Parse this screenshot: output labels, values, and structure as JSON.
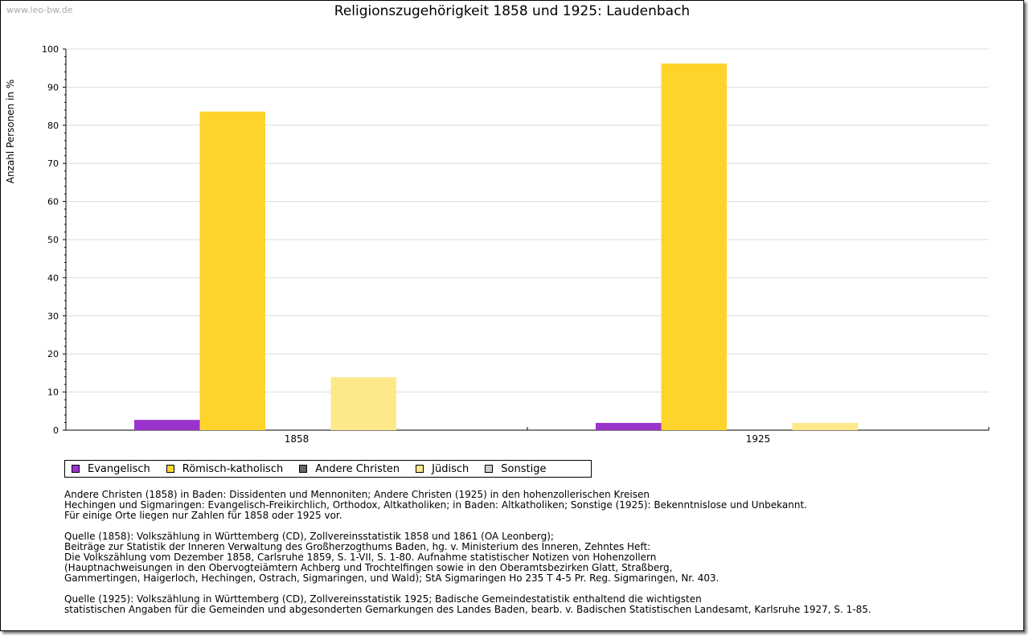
{
  "watermark": "www.leo-bw.de",
  "chart_data": {
    "type": "bar",
    "title": "Religionszugehörigkeit 1858 und 1925: Laudenbach",
    "xlabel": "",
    "ylabel": "Anzahl Personen in %",
    "ylim": [
      0,
      100
    ],
    "yticks": [
      0,
      10,
      20,
      30,
      40,
      50,
      60,
      70,
      80,
      90,
      100
    ],
    "grid": true,
    "legend_position": "bottom",
    "categories": [
      "1858",
      "1925"
    ],
    "series": [
      {
        "name": "Evangelisch",
        "color": "#9933cc",
        "values": [
          2.7,
          1.9
        ]
      },
      {
        "name": "Römisch-katholisch",
        "color": "#ffd42a",
        "values": [
          83.6,
          96.2
        ]
      },
      {
        "name": "Andere Christen",
        "color": "#666666",
        "values": [
          0,
          0
        ]
      },
      {
        "name": "Jüdisch",
        "color": "#fde98a",
        "values": [
          13.9,
          1.9
        ]
      },
      {
        "name": "Sonstige",
        "color": "#cccccc",
        "values": [
          0,
          0
        ]
      }
    ]
  },
  "notes": [
    [
      "Andere Christen (1858) in Baden: Dissidenten und Mennoniten; Andere Christen (1925) in den hohenzollerischen Kreisen",
      "Hechingen und Sigmaringen: Evangelisch-Freikirchlich, Orthodox, Altkatholiken; in Baden: Altkatholiken; Sonstige (1925): Bekenntnislose und Unbekannt.",
      "Für einige Orte liegen nur Zahlen für 1858 oder 1925 vor."
    ],
    [
      "Quelle (1858): Volkszählung in Württemberg (CD), Zollvereinsstatistik 1858 und 1861 (OA Leonberg);",
      "Beiträge zur Statistik der Inneren Verwaltung des Großherzogthums Baden, hg. v. Ministerium des Inneren, Zehntes Heft:",
      "Die Volkszählung vom Dezember 1858, Carlsruhe 1859, S. 1-VII, S. 1-80. Aufnahme statistischer Notizen von Hohenzollern",
      "(Hauptnachweisungen in den Obervogteiämtern Achberg und Trochtelfingen sowie in den Oberamtsbezirken Glatt, Straßberg,",
      "Gammertingen, Haigerloch, Hechingen, Ostrach, Sigmaringen, und Wald); StA Sigmaringen Ho 235 T 4-5 Pr. Reg. Sigmaringen, Nr. 403."
    ],
    [
      "Quelle (1925): Volkszählung in Württemberg (CD), Zollvereinsstatistik 1925; Badische Gemeindestatistik enthaltend die wichtigsten",
      "statistischen Angaben für die Gemeinden und abgesonderten Gemarkungen des Landes Baden, bearb. v. Badischen Statistischen Landesamt, Karlsruhe 1927, S. 1-85."
    ]
  ]
}
